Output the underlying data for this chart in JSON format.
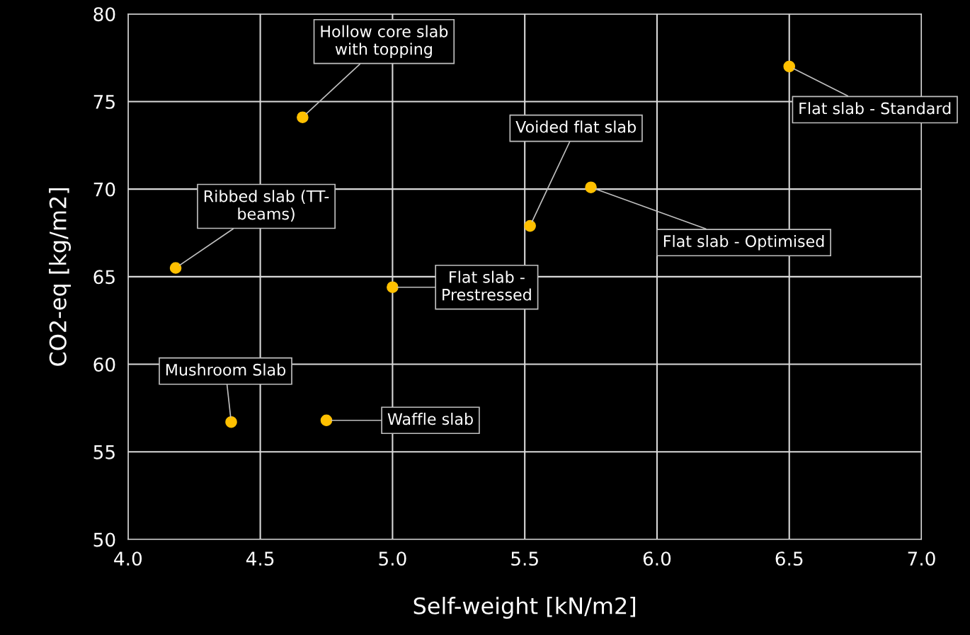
{
  "chart_data": {
    "type": "scatter",
    "xlabel": "Self-weight [kN/m2]",
    "ylabel": "CO2-eq [kg/m2]",
    "x": [
      4.66,
      6.5,
      5.52,
      5.75,
      4.18,
      5.0,
      4.39,
      4.75
    ],
    "series": [
      {
        "color": "#ffc000",
        "values": [
          74.1,
          77.0,
          67.9,
          70.1,
          65.5,
          64.4,
          56.7,
          56.8
        ]
      }
    ],
    "marker": "circle",
    "xlim": [
      4.0,
      7.0
    ],
    "xticks": [
      {
        "value": 4.0,
        "label": "4.0"
      },
      {
        "value": 4.5,
        "label": "4.5"
      },
      {
        "value": 5.0,
        "label": "5.0"
      },
      {
        "value": 5.5,
        "label": "5.5"
      },
      {
        "value": 6.0,
        "label": "6.0"
      },
      {
        "value": 6.5,
        "label": "6.5"
      },
      {
        "value": 7.0,
        "label": "7.0"
      }
    ],
    "ylim": [
      50,
      80
    ],
    "yticks": [
      50,
      55,
      60,
      65,
      70,
      75,
      80
    ],
    "grid": true,
    "annotations": [
      {
        "text": "Hollow core slab\nwith topping",
        "x": 4.66,
        "y": 74.1
      },
      {
        "text": "Flat slab - Standard",
        "x": 6.5,
        "y": 77.0
      },
      {
        "text": "Voided flat slab",
        "x": 5.52,
        "y": 67.9
      },
      {
        "text": "Flat slab - Optimised",
        "x": 5.75,
        "y": 70.1
      },
      {
        "text": "Ribbed slab (TT-\nbeams)",
        "x": 4.18,
        "y": 65.5
      },
      {
        "text": "Flat slab -\nPrestressed",
        "x": 5.0,
        "y": 64.4
      },
      {
        "text": "Mushroom Slab",
        "x": 4.39,
        "y": 56.7
      },
      {
        "text": "Waffle slab",
        "x": 4.75,
        "y": 56.8
      }
    ]
  }
}
